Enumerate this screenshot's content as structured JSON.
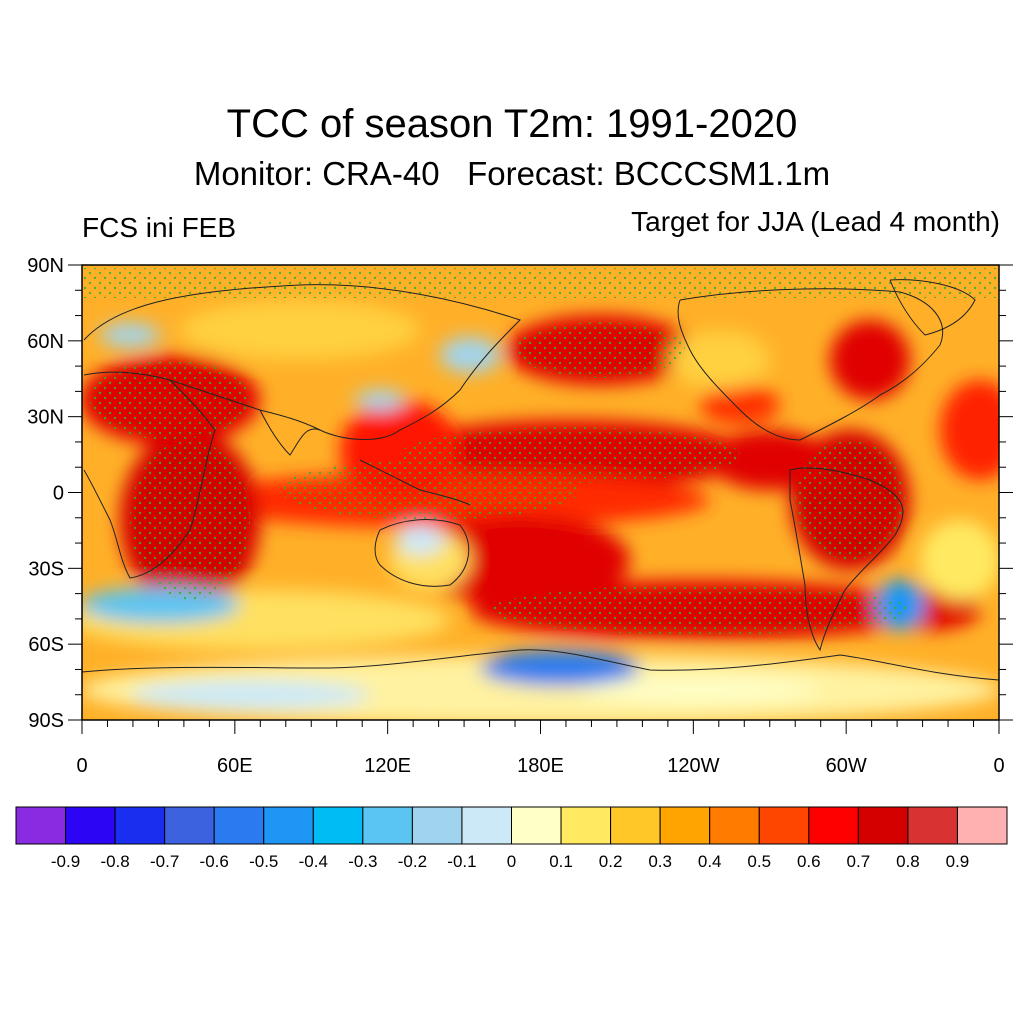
{
  "title": "TCC of season T2m: 1991-2020",
  "subtitle": "Monitor: CRA-40   Forecast: BCCCSM1.1m",
  "left_label": "FCS ini FEB",
  "right_label": "Target for JJA (Lead 4 month)",
  "map": {
    "projection": "cylindrical equidistant",
    "lon_range": [
      0,
      360
    ],
    "lat_range": [
      -90,
      90
    ],
    "lat_ticks": [
      {
        "value": 90,
        "label": "90N"
      },
      {
        "value": 60,
        "label": "60N"
      },
      {
        "value": 30,
        "label": "30N"
      },
      {
        "value": 0,
        "label": "0"
      },
      {
        "value": -30,
        "label": "30S"
      },
      {
        "value": -60,
        "label": "60S"
      },
      {
        "value": -90,
        "label": "90S"
      }
    ],
    "lon_ticks": [
      {
        "value": 0,
        "label": "0"
      },
      {
        "value": 60,
        "label": "60E"
      },
      {
        "value": 120,
        "label": "120E"
      },
      {
        "value": 180,
        "label": "180E"
      },
      {
        "value": 240,
        "label": "120W"
      },
      {
        "value": 300,
        "label": "60W"
      },
      {
        "value": 360,
        "label": "0"
      }
    ],
    "stipple_color": "#2db52d",
    "coastline_color": "#222222"
  },
  "colorbar": {
    "colors": [
      "#8a2be2",
      "#2c05f5",
      "#1a2ef0",
      "#3c62e0",
      "#2a7bf0",
      "#1e96f5",
      "#00bcf5",
      "#5bc5f2",
      "#a0d4ee",
      "#cce9f8",
      "#ffffc8",
      "#ffea62",
      "#ffc828",
      "#ffa400",
      "#ff7c00",
      "#ff4600",
      "#ff0000",
      "#d40000",
      "#d83232",
      "#ffb0b0"
    ],
    "labels": [
      "-0.9",
      "-0.8",
      "-0.7",
      "-0.6",
      "-0.5",
      "-0.4",
      "-0.3",
      "-0.2",
      "-0.1",
      "0",
      "0.1",
      "0.2",
      "0.3",
      "0.4",
      "0.5",
      "0.6",
      "0.7",
      "0.8",
      "0.9"
    ]
  }
}
